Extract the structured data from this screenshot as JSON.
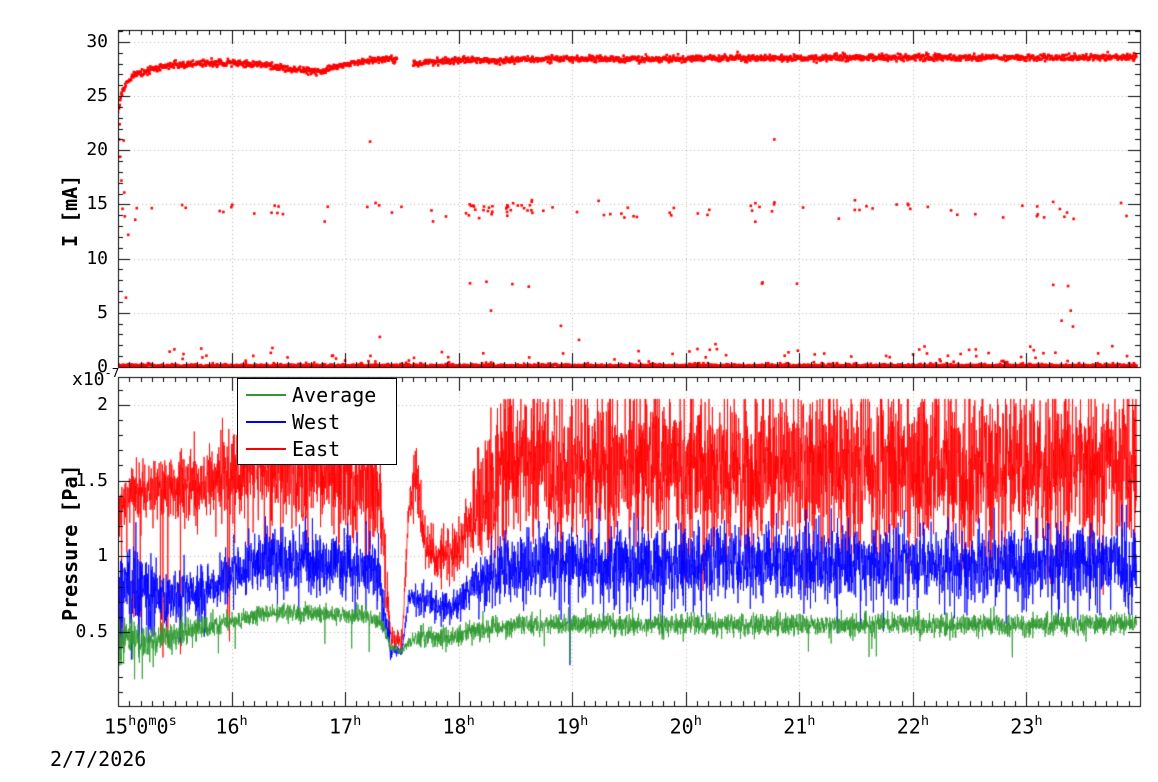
{
  "x_axis": {
    "tick_values": [
      15,
      16,
      17,
      18,
      19,
      20,
      21,
      22,
      23
    ],
    "tick_labels": [
      "15h0m0s",
      "16h",
      "17h",
      "18h",
      "19h",
      "20h",
      "21h",
      "22h",
      "23h"
    ],
    "date_label": "2/7/2026"
  },
  "chart_data": [
    {
      "id": "beam-current",
      "type": "scatter",
      "ylabel": "I [mA]",
      "marker_color": "#ff0000",
      "xlim": [
        15,
        24
      ],
      "ylim": [
        0,
        31.1
      ],
      "yticks": [
        0,
        5,
        10,
        15,
        20,
        25,
        30
      ],
      "grid": true,
      "gen": {
        "band_main": {
          "dt": 0.004,
          "jitter": 0.15,
          "profile": [
            [
              15.0,
              23.5
            ],
            [
              15.03,
              25.2
            ],
            [
              15.08,
              26.3
            ],
            [
              15.15,
              27.0
            ],
            [
              15.3,
              27.5
            ],
            [
              15.5,
              27.9
            ],
            [
              15.8,
              28.0
            ],
            [
              16.0,
              28.05
            ],
            [
              16.3,
              27.9
            ],
            [
              16.45,
              27.6
            ],
            [
              16.6,
              27.45
            ],
            [
              16.75,
              27.2
            ],
            [
              16.9,
              27.6
            ],
            [
              17.05,
              28.0
            ],
            [
              17.2,
              28.3
            ],
            [
              17.35,
              28.45
            ],
            [
              17.45,
              28.4
            ],
            [
              17.62,
              28.0
            ],
            [
              17.8,
              28.2
            ],
            [
              18.0,
              28.3
            ],
            [
              18.5,
              28.35
            ],
            [
              19.0,
              28.45
            ],
            [
              19.5,
              28.4
            ],
            [
              20.0,
              28.45
            ],
            [
              21.0,
              28.5
            ],
            [
              22.0,
              28.55
            ],
            [
              23.0,
              28.55
            ],
            [
              23.97,
              28.6
            ]
          ],
          "gaps": [
            [
              17.46,
              17.6
            ]
          ]
        },
        "band_baseline": {
          "dt": 0.005,
          "jitter": 0.07,
          "profile": [
            [
              15.0,
              0.12
            ],
            [
              23.97,
              0.12
            ]
          ],
          "gaps": []
        },
        "sparse": [
          {
            "n": 85,
            "x": [
              15.12,
              23.95
            ],
            "center": 14.4,
            "sigma": 0.5,
            "clip": [
              13.0,
              15.8
            ]
          },
          {
            "n": 25,
            "x": [
              18.05,
              18.65
            ],
            "center": 14.6,
            "sigma": 0.4,
            "clip": [
              13.2,
              15.6
            ]
          },
          {
            "n": 110,
            "x": [
              15.2,
              23.95
            ],
            "center": 0.8,
            "sigma": 0.55,
            "clip": [
              0.35,
              2.6
            ]
          },
          {
            "n": 9,
            "x": [
              17.5,
              23.5
            ],
            "center": 7.5,
            "sigma": 0.35,
            "clip": [
              6.6,
              8.2
            ]
          },
          {
            "n": 7,
            "x": [
              16.5,
              23.5
            ],
            "center": 3.8,
            "sigma": 0.9,
            "clip": [
              2.5,
              5.2
            ]
          }
        ],
        "outliers": [
          [
            15.01,
            21.0
          ],
          [
            15.015,
            22.4
          ],
          [
            15.02,
            19.4
          ],
          [
            15.03,
            17.2
          ],
          [
            15.04,
            14.6
          ],
          [
            15.05,
            20.9
          ],
          [
            15.055,
            16.1
          ],
          [
            15.06,
            13.9
          ],
          [
            15.07,
            6.4
          ],
          [
            15.09,
            12.2
          ],
          [
            17.22,
            20.8
          ],
          [
            20.78,
            21.0
          ]
        ]
      }
    },
    {
      "id": "vacuum-pressure",
      "type": "line",
      "ylabel": "Pressure [Pa]",
      "scale_label": {
        "mantissa": "x10",
        "exponent": "-7"
      },
      "xlim": [
        15,
        24
      ],
      "ylim": [
        0.01,
        2.185
      ],
      "yticks": [
        0.5,
        1,
        1.5,
        2
      ],
      "grid": true,
      "legend": {
        "position": "top-left"
      },
      "series": [
        {
          "name": "Average",
          "color": "#2e9930",
          "base": [
            [
              15.0,
              0.4
            ],
            [
              15.08,
              0.46
            ],
            [
              15.2,
              0.42
            ],
            [
              15.35,
              0.44
            ],
            [
              15.55,
              0.5
            ],
            [
              15.8,
              0.53
            ],
            [
              16.0,
              0.57
            ],
            [
              16.2,
              0.61
            ],
            [
              16.5,
              0.63
            ],
            [
              16.9,
              0.62
            ],
            [
              17.2,
              0.6
            ],
            [
              17.32,
              0.56
            ],
            [
              17.4,
              0.4
            ],
            [
              17.5,
              0.37
            ],
            [
              17.56,
              0.44
            ],
            [
              17.7,
              0.46
            ],
            [
              17.95,
              0.47
            ],
            [
              18.1,
              0.5
            ],
            [
              18.3,
              0.53
            ],
            [
              18.6,
              0.55
            ],
            [
              19.5,
              0.55
            ],
            [
              20.5,
              0.545
            ],
            [
              21.5,
              0.55
            ],
            [
              22.5,
              0.545
            ],
            [
              23.97,
              0.56
            ]
          ],
          "amp": [
            [
              15.0,
              0.07
            ],
            [
              15.35,
              0.045
            ],
            [
              15.9,
              0.035
            ],
            [
              16.2,
              0.03
            ],
            [
              17.3,
              0.03
            ],
            [
              17.42,
              0.012
            ],
            [
              17.52,
              0.012
            ],
            [
              17.65,
              0.035
            ],
            [
              23.97,
              0.035
            ]
          ],
          "spikes": [
            {
              "x": [
                15.0,
                15.4
              ],
              "prob": 0.035,
              "lo": 0.17,
              "hi": 0.3
            },
            {
              "x": [
                15.4,
                23.97
              ],
              "prob": 0.0035,
              "lo": 0.33,
              "hi": 0.44
            }
          ],
          "forced": [
            [
              18.98,
              0.3
            ],
            [
              21.08,
              0.37
            ]
          ]
        },
        {
          "name": "West",
          "color": "#0000ff",
          "base": [
            [
              15.0,
              0.78
            ],
            [
              15.12,
              0.86
            ],
            [
              15.3,
              0.74
            ],
            [
              15.5,
              0.72
            ],
            [
              15.8,
              0.78
            ],
            [
              16.0,
              0.9
            ],
            [
              16.2,
              0.96
            ],
            [
              16.6,
              0.97
            ],
            [
              17.0,
              0.95
            ],
            [
              17.3,
              0.88
            ],
            [
              17.4,
              0.38
            ],
            [
              17.5,
              0.36
            ],
            [
              17.56,
              0.74
            ],
            [
              17.7,
              0.68
            ],
            [
              17.95,
              0.66
            ],
            [
              18.1,
              0.78
            ],
            [
              18.3,
              0.9
            ],
            [
              18.6,
              0.94
            ],
            [
              19.2,
              0.95
            ],
            [
              20.0,
              0.94
            ],
            [
              21.0,
              0.95
            ],
            [
              22.0,
              0.94
            ],
            [
              23.0,
              0.95
            ],
            [
              23.97,
              0.95
            ]
          ],
          "amp": [
            [
              15.0,
              0.16
            ],
            [
              15.35,
              0.1
            ],
            [
              15.9,
              0.08
            ],
            [
              16.2,
              0.1
            ],
            [
              17.3,
              0.1
            ],
            [
              17.42,
              0.02
            ],
            [
              17.52,
              0.02
            ],
            [
              17.65,
              0.05
            ],
            [
              18.0,
              0.06
            ],
            [
              18.35,
              0.12
            ],
            [
              23.97,
              0.12
            ]
          ],
          "spikes": [
            {
              "x": [
                15.0,
                15.4
              ],
              "prob": 0.04,
              "lo": 0.3,
              "hi": 0.5
            },
            {
              "x": [
                15.4,
                16.1
              ],
              "prob": 0.015,
              "lo": 0.35,
              "hi": 0.55
            },
            {
              "x": [
                16.1,
                17.3
              ],
              "prob": 0.005,
              "lo": 0.55,
              "hi": 0.72
            },
            {
              "x": [
                18.0,
                23.97
              ],
              "prob": 0.005,
              "lo": 0.55,
              "hi": 0.72
            }
          ],
          "forced": [
            [
              18.98,
              0.28
            ]
          ]
        },
        {
          "name": "East",
          "color": "#ff0000",
          "base": [
            [
              15.0,
              1.3
            ],
            [
              15.1,
              1.42
            ],
            [
              15.4,
              1.44
            ],
            [
              15.7,
              1.46
            ],
            [
              15.95,
              1.52
            ],
            [
              16.15,
              1.62
            ],
            [
              16.6,
              1.6
            ],
            [
              17.0,
              1.56
            ],
            [
              17.3,
              1.46
            ],
            [
              17.4,
              0.46
            ],
            [
              17.5,
              0.42
            ],
            [
              17.56,
              1.3
            ],
            [
              17.62,
              1.6
            ],
            [
              17.7,
              1.08
            ],
            [
              17.85,
              0.98
            ],
            [
              18.0,
              1.05
            ],
            [
              18.15,
              1.3
            ],
            [
              18.35,
              1.55
            ],
            [
              18.6,
              1.62
            ],
            [
              19.2,
              1.63
            ],
            [
              20.0,
              1.6
            ],
            [
              20.6,
              1.55
            ],
            [
              21.2,
              1.6
            ],
            [
              22.0,
              1.6
            ],
            [
              23.0,
              1.58
            ],
            [
              23.97,
              1.6
            ]
          ],
          "amp": [
            [
              15.0,
              0.1
            ],
            [
              15.9,
              0.12
            ],
            [
              16.15,
              0.22
            ],
            [
              17.3,
              0.22
            ],
            [
              17.42,
              0.03
            ],
            [
              17.52,
              0.03
            ],
            [
              17.62,
              0.12
            ],
            [
              17.75,
              0.07
            ],
            [
              18.05,
              0.09
            ],
            [
              18.35,
              0.26
            ],
            [
              23.97,
              0.26
            ]
          ],
          "spikes": [
            {
              "x": [
                15.0,
                16.0
              ],
              "prob": 0.02,
              "lo": 0.3,
              "hi": 0.6
            },
            {
              "x": [
                16.0,
                17.3
              ],
              "prob": 0.006,
              "lo": 0.8,
              "hi": 1.05
            },
            {
              "x": [
                18.0,
                23.97
              ],
              "prob": 0.006,
              "lo": 0.75,
              "hi": 1.05
            }
          ],
          "forced": []
        }
      ]
    }
  ]
}
